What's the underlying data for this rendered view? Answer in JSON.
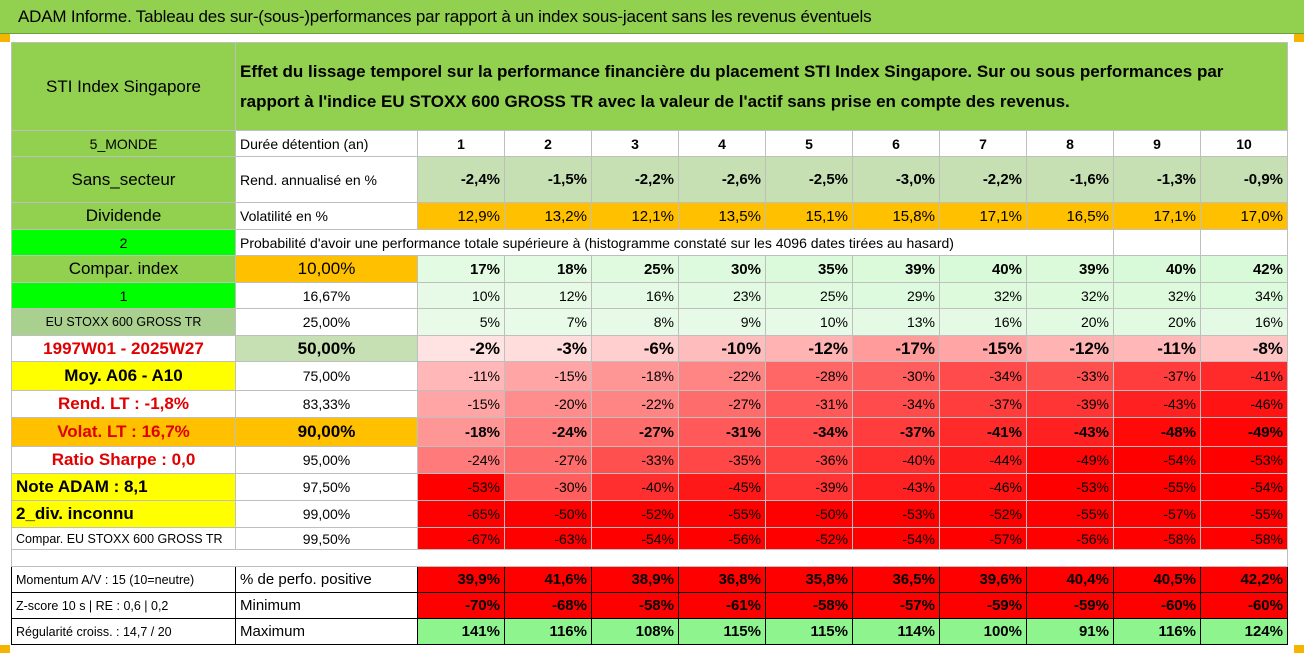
{
  "title": "ADAM Informe. Tableau des sur-(sous-)performances par rapport à un index sous-jacent sans les revenus éventuels",
  "header": {
    "left": "STI Index Singapore",
    "right": "Effet du lissage temporel sur la performance financière du placement STI Index Singapore. Sur ou sous performances par rapport à l'indice EU STOXX 600 GROSS TR avec la valeur de l'actif sans prise en compte des revenus."
  },
  "durations_label": "Durée détention (an)",
  "durations": [
    "1",
    "2",
    "3",
    "4",
    "5",
    "6",
    "7",
    "8",
    "9",
    "10"
  ],
  "side": {
    "r0": "5_MONDE",
    "r1": "Sans_secteur",
    "r2": "Dividende",
    "r3": "2",
    "r4": "Compar. index",
    "r5": "1",
    "r6": "EU STOXX 600 GROSS TR",
    "r7": "1997W01 - 2025W27",
    "r8": "Moy. A06 - A10",
    "r9": "Rend. LT :    -1,8%",
    "r10": "Volat. LT :    16,7%",
    "r11": "Ratio Sharpe :    0,0",
    "r12": "Note ADAM : 8,1",
    "r13": "2_div. inconnu",
    "r14": "Compar. EU STOXX 600 GROSS TR"
  },
  "rend": {
    "label": "Rend. annualisé en %",
    "values": [
      "-2,4%",
      "-1,5%",
      "-2,2%",
      "-2,6%",
      "-2,5%",
      "-3,0%",
      "-2,2%",
      "-1,6%",
      "-1,3%",
      "-0,9%"
    ]
  },
  "vol": {
    "label": "Volatilité en %",
    "values": [
      "12,9%",
      "13,2%",
      "12,1%",
      "13,5%",
      "15,1%",
      "15,8%",
      "17,1%",
      "16,5%",
      "17,1%",
      "17,0%"
    ]
  },
  "proba_label": "Probabilité d'avoir une performance totale supérieure à (histogramme constaté sur les 4096 dates tirées au hasard)",
  "pct_rows": [
    {
      "level": "10,00%",
      "values": [
        "17%",
        "18%",
        "25%",
        "30%",
        "35%",
        "39%",
        "40%",
        "39%",
        "40%",
        "42%"
      ]
    },
    {
      "level": "16,67%",
      "values": [
        "10%",
        "12%",
        "16%",
        "23%",
        "25%",
        "29%",
        "32%",
        "32%",
        "32%",
        "34%"
      ]
    },
    {
      "level": "25,00%",
      "values": [
        "5%",
        "7%",
        "8%",
        "9%",
        "10%",
        "13%",
        "16%",
        "20%",
        "20%",
        "16%"
      ]
    },
    {
      "level": "50,00%",
      "values": [
        "-2%",
        "-3%",
        "-6%",
        "-10%",
        "-12%",
        "-17%",
        "-15%",
        "-12%",
        "-11%",
        "-8%"
      ]
    },
    {
      "level": "75,00%",
      "values": [
        "-11%",
        "-15%",
        "-18%",
        "-22%",
        "-28%",
        "-30%",
        "-34%",
        "-33%",
        "-37%",
        "-41%"
      ]
    },
    {
      "level": "83,33%",
      "values": [
        "-15%",
        "-20%",
        "-22%",
        "-27%",
        "-31%",
        "-34%",
        "-37%",
        "-39%",
        "-43%",
        "-46%"
      ]
    },
    {
      "level": "90,00%",
      "values": [
        "-18%",
        "-24%",
        "-27%",
        "-31%",
        "-34%",
        "-37%",
        "-41%",
        "-43%",
        "-48%",
        "-49%"
      ]
    },
    {
      "level": "95,00%",
      "values": [
        "-24%",
        "-27%",
        "-33%",
        "-35%",
        "-36%",
        "-40%",
        "-44%",
        "-49%",
        "-54%",
        "-53%"
      ]
    },
    {
      "level": "97,50%",
      "values": [
        "-53%",
        "-30%",
        "-40%",
        "-45%",
        "-39%",
        "-43%",
        "-46%",
        "-53%",
        "-55%",
        "-54%"
      ]
    },
    {
      "level": "99,00%",
      "values": [
        "-65%",
        "-50%",
        "-52%",
        "-55%",
        "-50%",
        "-53%",
        "-52%",
        "-55%",
        "-57%",
        "-55%"
      ]
    },
    {
      "level": "99,50%",
      "values": [
        "-67%",
        "-63%",
        "-54%",
        "-56%",
        "-52%",
        "-54%",
        "-57%",
        "-56%",
        "-58%",
        "-58%"
      ]
    }
  ],
  "bottom": {
    "momentum": "Momentum A/V : 15 (10=neutre)",
    "zscore": "Z-score 10 s | RE : 0,6 | 0,2",
    "regularite": "Régularité croiss. : 14,7 / 20",
    "pos_label": "% de perfo. positive",
    "pos_values": [
      "39,9%",
      "41,6%",
      "38,9%",
      "36,8%",
      "35,8%",
      "36,5%",
      "39,6%",
      "40,4%",
      "40,5%",
      "42,2%"
    ],
    "min_label": "Minimum",
    "min_values": [
      "-70%",
      "-68%",
      "-58%",
      "-61%",
      "-58%",
      "-57%",
      "-59%",
      "-59%",
      "-60%",
      "-60%"
    ],
    "max_label": "Maximum",
    "max_values": [
      "141%",
      "116%",
      "108%",
      "115%",
      "115%",
      "114%",
      "100%",
      "91%",
      "116%",
      "124%"
    ]
  },
  "colors": {
    "title_green": "#92d050",
    "bright_green": "#00ff00",
    "yellow": "#ffff00",
    "orange": "#ffc000",
    "red": "#ff0000"
  }
}
